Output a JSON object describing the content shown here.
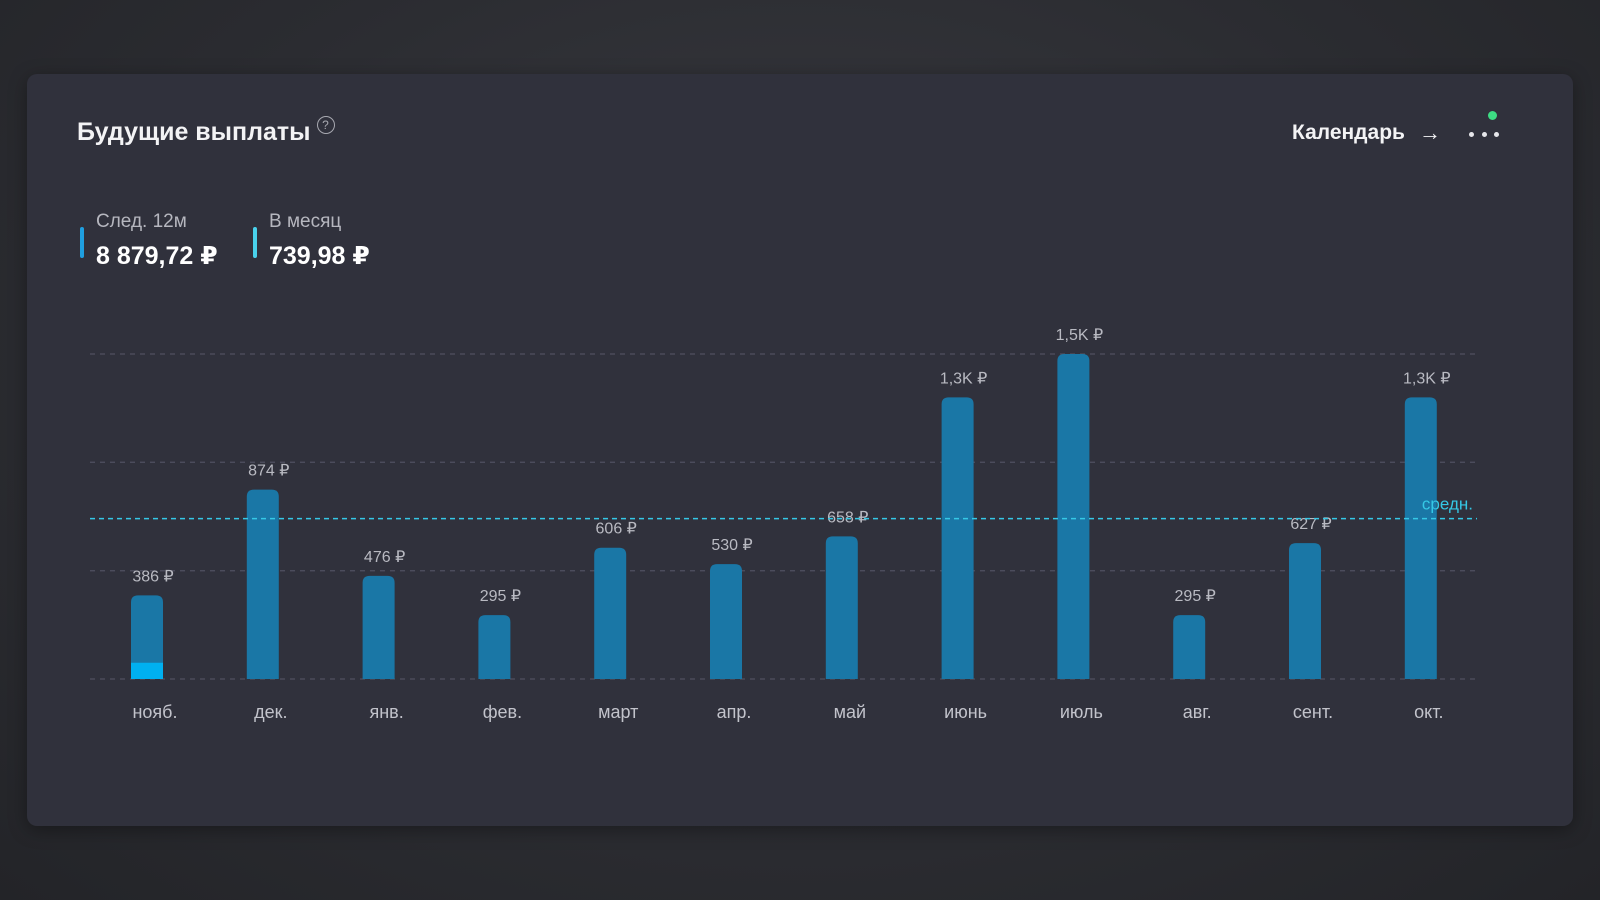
{
  "header": {
    "title": "Будущие выплаты",
    "help_icon": "?",
    "calendar_label": "Календарь",
    "arrow_icon": "→"
  },
  "stats": [
    {
      "label": "След. 12м",
      "value": "8 879,72 ₽",
      "color": "#1f9fe0"
    },
    {
      "label": "В месяц",
      "value": "739,98 ₽",
      "color": "#49d2ec"
    }
  ],
  "colors": {
    "bar": "#1a77a6",
    "bar_highlight": "#00b0f0",
    "average_line": "#35c8e6",
    "notification": "#3ddc84"
  },
  "chart_data": {
    "type": "bar",
    "categories": [
      "нояб.",
      "дек.",
      "янв.",
      "фев.",
      "март",
      "апр.",
      "май",
      "июнь",
      "июль",
      "авг.",
      "сент.",
      "окт."
    ],
    "values": [
      386,
      874,
      476,
      295,
      606,
      530,
      658,
      1300,
      1500,
      295,
      627,
      1300
    ],
    "value_labels": [
      "386 ₽",
      "874 ₽",
      "476 ₽",
      "295 ₽",
      "606 ₽",
      "530 ₽",
      "658 ₽",
      "1,3K ₽",
      "1,5K ₽",
      "295 ₽",
      "627 ₽",
      "1,3K ₽"
    ],
    "highlight": {
      "index": 0,
      "value": 75
    },
    "average": 739.98,
    "average_label": "средн.",
    "ylim": [
      0,
      1500
    ],
    "grid": true
  }
}
